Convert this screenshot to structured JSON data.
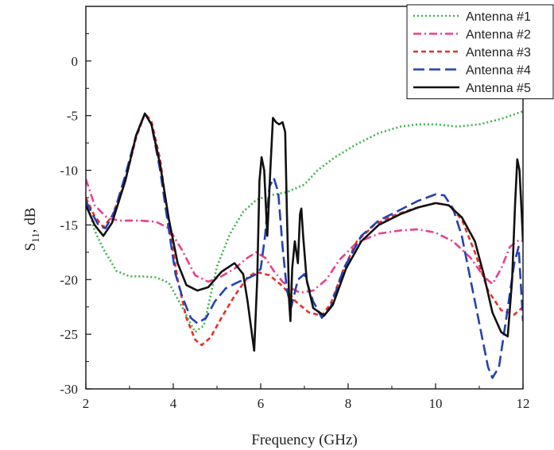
{
  "chart_data": {
    "type": "line",
    "title": "",
    "xlabel": "Frequency (GHz)",
    "ylabel_main": "S",
    "ylabel_sub": "11",
    "ylabel_rest": ", dB",
    "xlim": [
      2,
      12
    ],
    "ylim": [
      -30,
      5
    ],
    "xticks": [
      2,
      4,
      6,
      8,
      10,
      12
    ],
    "xtick_labels": [
      "2",
      "4",
      "6",
      "8",
      "10",
      "12"
    ],
    "yticks": [
      0,
      -5,
      -10,
      -15,
      -20,
      -25,
      -30
    ],
    "ytick_labels": [
      "0",
      "-5",
      "-10",
      "-15",
      "-20",
      "-25",
      "-30"
    ],
    "grid": false,
    "legend_position": "top-right",
    "series": [
      {
        "name": "Antenna #1",
        "color": "#3cb44b",
        "dash": "2,3",
        "points": [
          [
            2,
            -12.5
          ],
          [
            2.2,
            -15.5
          ],
          [
            2.4,
            -17.2
          ],
          [
            2.7,
            -19.2
          ],
          [
            3,
            -19.7
          ],
          [
            3.3,
            -19.7
          ],
          [
            3.6,
            -19.8
          ],
          [
            3.9,
            -20.3
          ],
          [
            4.2,
            -22.5
          ],
          [
            4.5,
            -24.8
          ],
          [
            4.7,
            -24.2
          ],
          [
            4.85,
            -21.5
          ],
          [
            5,
            -18.8
          ],
          [
            5.3,
            -15.8
          ],
          [
            5.6,
            -13.8
          ],
          [
            5.9,
            -12.7
          ],
          [
            6.2,
            -12.3
          ],
          [
            6.6,
            -12
          ],
          [
            7,
            -11.3
          ],
          [
            7.3,
            -10
          ],
          [
            7.7,
            -8.8
          ],
          [
            8.2,
            -7.6
          ],
          [
            8.7,
            -6.6
          ],
          [
            9.2,
            -6
          ],
          [
            9.6,
            -5.8
          ],
          [
            10,
            -5.8
          ],
          [
            10.5,
            -6
          ],
          [
            11,
            -5.8
          ],
          [
            11.5,
            -5.3
          ],
          [
            12,
            -4.6
          ]
        ]
      },
      {
        "name": "Antenna #2",
        "color": "#e8408a",
        "dash": "10,4,2,4",
        "points": [
          [
            2,
            -10.8
          ],
          [
            2.2,
            -13.2
          ],
          [
            2.5,
            -14.4
          ],
          [
            2.8,
            -14.6
          ],
          [
            3.2,
            -14.6
          ],
          [
            3.6,
            -14.7
          ],
          [
            3.9,
            -15.3
          ],
          [
            4.2,
            -17.3
          ],
          [
            4.5,
            -19.6
          ],
          [
            4.8,
            -20.2
          ],
          [
            5.1,
            -19.7
          ],
          [
            5.4,
            -19
          ],
          [
            5.7,
            -18
          ],
          [
            5.9,
            -17.5
          ],
          [
            6.1,
            -18
          ],
          [
            6.3,
            -19.2
          ],
          [
            6.5,
            -20.2
          ],
          [
            6.7,
            -20.8
          ],
          [
            6.9,
            -21.2
          ],
          [
            7.2,
            -21
          ],
          [
            7.5,
            -20
          ],
          [
            7.8,
            -18.2
          ],
          [
            8.2,
            -16.6
          ],
          [
            8.7,
            -15.8
          ],
          [
            9.2,
            -15.5
          ],
          [
            9.6,
            -15.4
          ],
          [
            10,
            -15.7
          ],
          [
            10.4,
            -16.5
          ],
          [
            10.8,
            -18
          ],
          [
            11.1,
            -19.7
          ],
          [
            11.3,
            -20.4
          ],
          [
            11.5,
            -19
          ],
          [
            11.7,
            -17
          ],
          [
            11.9,
            -16.4
          ],
          [
            12,
            -16.5
          ]
        ]
      },
      {
        "name": "Antenna #3",
        "color": "#e8302a",
        "dash": "6,4",
        "points": [
          [
            2,
            -12.5
          ],
          [
            2.2,
            -14.2
          ],
          [
            2.4,
            -15.2
          ],
          [
            2.6,
            -14.2
          ],
          [
            2.9,
            -11
          ],
          [
            3.15,
            -7
          ],
          [
            3.35,
            -4.8
          ],
          [
            3.5,
            -5.5
          ],
          [
            3.7,
            -9
          ],
          [
            3.9,
            -15
          ],
          [
            4.1,
            -20
          ],
          [
            4.3,
            -23.5
          ],
          [
            4.5,
            -25.5
          ],
          [
            4.65,
            -26
          ],
          [
            4.85,
            -25.3
          ],
          [
            5.1,
            -23.5
          ],
          [
            5.4,
            -21.5
          ],
          [
            5.7,
            -19.8
          ],
          [
            5.9,
            -19.3
          ],
          [
            6.2,
            -19.6
          ],
          [
            6.5,
            -20.6
          ],
          [
            6.8,
            -22
          ],
          [
            7.1,
            -23
          ],
          [
            7.4,
            -23.3
          ],
          [
            7.6,
            -22.2
          ],
          [
            7.9,
            -19
          ],
          [
            8.2,
            -16.5
          ],
          [
            8.6,
            -15
          ],
          [
            9,
            -14.2
          ],
          [
            9.5,
            -13.5
          ],
          [
            10,
            -13
          ],
          [
            10.3,
            -13.2
          ],
          [
            10.6,
            -14.5
          ],
          [
            10.9,
            -17.5
          ],
          [
            11.2,
            -21
          ],
          [
            11.5,
            -22.8
          ],
          [
            11.8,
            -23.2
          ],
          [
            12,
            -22.5
          ]
        ]
      },
      {
        "name": "Antenna #4",
        "color": "#2541b2",
        "dash": "14,6",
        "points": [
          [
            2,
            -12.8
          ],
          [
            2.15,
            -14
          ],
          [
            2.3,
            -15.1
          ],
          [
            2.45,
            -15.3
          ],
          [
            2.65,
            -13.8
          ],
          [
            2.9,
            -10.5
          ],
          [
            3.15,
            -6.8
          ],
          [
            3.35,
            -4.8
          ],
          [
            3.5,
            -5.8
          ],
          [
            3.7,
            -10
          ],
          [
            3.9,
            -15.5
          ],
          [
            4.05,
            -19.5
          ],
          [
            4.2,
            -21.5
          ],
          [
            4.4,
            -23.5
          ],
          [
            4.55,
            -24
          ],
          [
            4.75,
            -23.5
          ],
          [
            4.95,
            -22
          ],
          [
            5.2,
            -20.8
          ],
          [
            5.5,
            -20.2
          ],
          [
            5.75,
            -19.8
          ],
          [
            5.9,
            -19.5
          ],
          [
            6.0,
            -19
          ],
          [
            6.1,
            -16
          ],
          [
            6.2,
            -11.5
          ],
          [
            6.3,
            -10.7
          ],
          [
            6.4,
            -12
          ],
          [
            6.5,
            -17
          ],
          [
            6.6,
            -21
          ],
          [
            6.7,
            -22.5
          ],
          [
            6.85,
            -20
          ],
          [
            7.0,
            -19.5
          ],
          [
            7.2,
            -22
          ],
          [
            7.4,
            -23.5
          ],
          [
            7.6,
            -22.5
          ],
          [
            7.9,
            -19
          ],
          [
            8.3,
            -16
          ],
          [
            8.7,
            -14.6
          ],
          [
            9.2,
            -13.6
          ],
          [
            9.6,
            -12.8
          ],
          [
            10,
            -12.2
          ],
          [
            10.2,
            -12.3
          ],
          [
            10.4,
            -13.5
          ],
          [
            10.6,
            -16
          ],
          [
            10.8,
            -20
          ],
          [
            11.0,
            -24
          ],
          [
            11.2,
            -28
          ],
          [
            11.3,
            -29
          ],
          [
            11.45,
            -28
          ],
          [
            11.6,
            -24
          ],
          [
            11.8,
            -18.5
          ],
          [
            11.9,
            -17
          ],
          [
            12,
            -23.8
          ]
        ]
      },
      {
        "name": "Antenna #5",
        "color": "#111111",
        "dash": "",
        "points": [
          [
            2,
            -13.2
          ],
          [
            2.2,
            -15
          ],
          [
            2.4,
            -16
          ],
          [
            2.6,
            -14.8
          ],
          [
            2.9,
            -11
          ],
          [
            3.15,
            -6.8
          ],
          [
            3.35,
            -4.8
          ],
          [
            3.5,
            -5.8
          ],
          [
            3.7,
            -9.5
          ],
          [
            3.9,
            -14.5
          ],
          [
            4.1,
            -18.5
          ],
          [
            4.3,
            -20.5
          ],
          [
            4.55,
            -21
          ],
          [
            4.8,
            -20.7
          ],
          [
            5.1,
            -19.3
          ],
          [
            5.4,
            -18.5
          ],
          [
            5.6,
            -19.5
          ],
          [
            5.7,
            -22
          ],
          [
            5.8,
            -25
          ],
          [
            5.85,
            -26.5
          ],
          [
            5.92,
            -20
          ],
          [
            5.97,
            -11
          ],
          [
            6.02,
            -8.8
          ],
          [
            6.08,
            -10
          ],
          [
            6.15,
            -16
          ],
          [
            6.22,
            -10
          ],
          [
            6.28,
            -5.2
          ],
          [
            6.35,
            -5.6
          ],
          [
            6.42,
            -5.8
          ],
          [
            6.5,
            -5.6
          ],
          [
            6.56,
            -6.5
          ],
          [
            6.6,
            -14
          ],
          [
            6.65,
            -22
          ],
          [
            6.68,
            -23.8
          ],
          [
            6.72,
            -19
          ],
          [
            6.78,
            -16.5
          ],
          [
            6.85,
            -18.5
          ],
          [
            6.9,
            -14
          ],
          [
            6.93,
            -13.5
          ],
          [
            6.97,
            -16
          ],
          [
            7.05,
            -20
          ],
          [
            7.2,
            -22.6
          ],
          [
            7.45,
            -23.3
          ],
          [
            7.65,
            -22.3
          ],
          [
            7.95,
            -19
          ],
          [
            8.3,
            -16.5
          ],
          [
            8.7,
            -15
          ],
          [
            9.2,
            -14
          ],
          [
            9.6,
            -13.4
          ],
          [
            10,
            -13
          ],
          [
            10.3,
            -13.2
          ],
          [
            10.6,
            -14.3
          ],
          [
            10.9,
            -16.5
          ],
          [
            11.1,
            -19.5
          ],
          [
            11.3,
            -23
          ],
          [
            11.5,
            -24.8
          ],
          [
            11.65,
            -25.2
          ],
          [
            11.75,
            -20
          ],
          [
            11.82,
            -13
          ],
          [
            11.87,
            -9
          ],
          [
            11.92,
            -10
          ],
          [
            11.97,
            -14
          ],
          [
            12,
            -16.5
          ]
        ]
      }
    ]
  }
}
